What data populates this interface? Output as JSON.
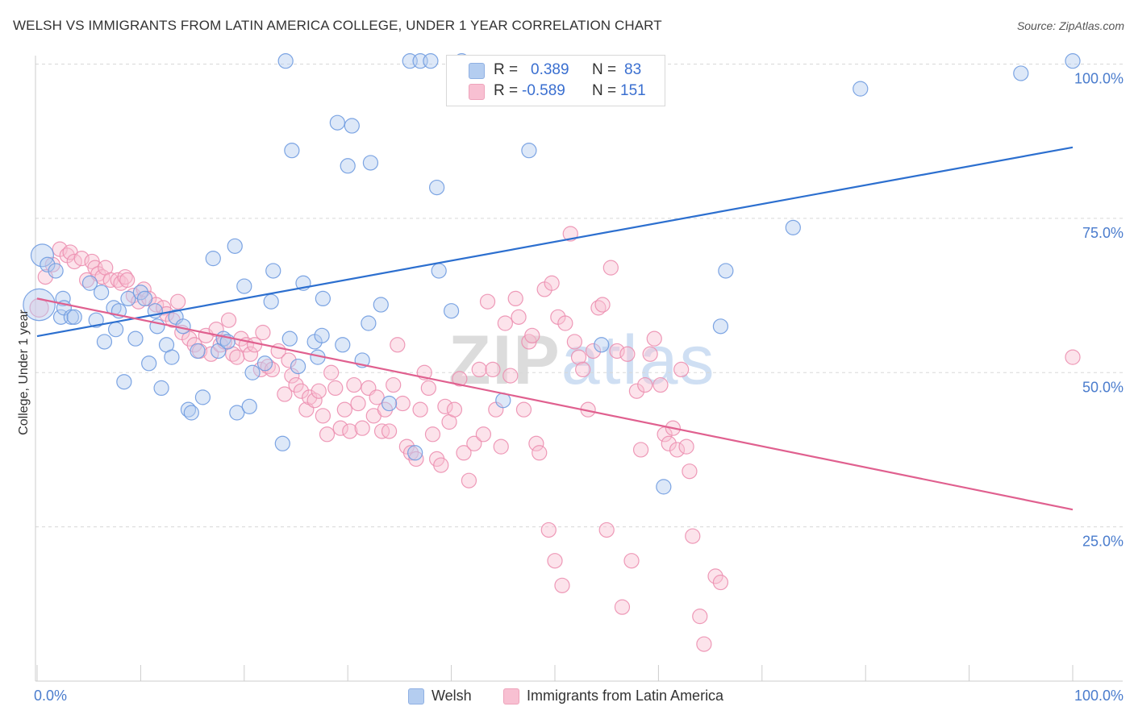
{
  "title": "WELSH VS IMMIGRANTS FROM LATIN AMERICA COLLEGE, UNDER 1 YEAR CORRELATION CHART",
  "source": "Source: ZipAtlas.com",
  "watermark": {
    "zip": "ZIP",
    "atlas": "atlas"
  },
  "colors": {
    "welsh_fill": "#b4cdf0",
    "welsh_stroke": "#6f9be0",
    "welsh_line": "#2c6fcf",
    "latam_fill": "#f8c0d2",
    "latam_stroke": "#ec8fb0",
    "latam_line": "#e0608f",
    "axis_label": "#4a7ccd",
    "grid": "#d8d8d8"
  },
  "stats_legend": {
    "welsh": {
      "r_label": "R =",
      "r_value": "0.389",
      "n_label": "N =",
      "n_value": "83"
    },
    "latam": {
      "r_label": "R =",
      "r_value": "-0.589",
      "n_label": "N =",
      "n_value": "151"
    }
  },
  "bottom_legend": {
    "welsh": "Welsh",
    "latam": "Immigrants from Latin America"
  },
  "chart_data": {
    "type": "scatter",
    "title": "WELSH VS IMMIGRANTS FROM LATIN AMERICA COLLEGE, UNDER 1 YEAR CORRELATION CHART",
    "xlabel": "",
    "ylabel": "College, Under 1 year",
    "xlim": [
      0,
      100
    ],
    "ylim": [
      0,
      104
    ],
    "x_tick_labels": [
      "0.0%",
      "100.0%"
    ],
    "y_ticks": [
      25,
      50,
      75,
      100
    ],
    "y_tick_labels": [
      "25.0%",
      "50.0%",
      "75.0%",
      "100.0%"
    ],
    "series": [
      {
        "name": "Welsh",
        "r": 0.389,
        "n": 83,
        "trend": {
          "x": [
            0,
            100
          ],
          "y": [
            55.9,
            86.5
          ]
        },
        "points": [
          [
            0.2,
            61,
            24
          ],
          [
            0.5,
            69,
            17
          ],
          [
            1.0,
            67.5,
            11
          ],
          [
            1.8,
            66.5,
            11
          ],
          [
            2.3,
            59,
            11
          ],
          [
            2.5,
            62,
            11
          ],
          [
            2.6,
            60.5,
            11
          ],
          [
            3.3,
            59,
            11
          ],
          [
            3.6,
            59,
            11
          ],
          [
            5.1,
            64.5,
            11
          ],
          [
            5.7,
            58.5,
            11
          ],
          [
            6.2,
            63,
            11
          ],
          [
            6.5,
            55,
            11
          ],
          [
            7.4,
            60.5,
            11
          ],
          [
            7.6,
            57,
            11
          ],
          [
            7.9,
            60,
            11
          ],
          [
            8.4,
            48.5,
            11
          ],
          [
            8.8,
            62,
            11
          ],
          [
            9.5,
            55.5,
            11
          ],
          [
            10.0,
            63,
            11
          ],
          [
            10.4,
            62,
            11
          ],
          [
            10.8,
            51.5,
            11
          ],
          [
            11.4,
            60,
            11
          ],
          [
            11.6,
            57.5,
            11
          ],
          [
            12.0,
            47.5,
            11
          ],
          [
            12.5,
            54.5,
            11
          ],
          [
            13.0,
            52.5,
            11
          ],
          [
            13.4,
            59,
            11
          ],
          [
            14.1,
            57.5,
            11
          ],
          [
            14.6,
            44,
            11
          ],
          [
            14.9,
            43.5,
            11
          ],
          [
            15.5,
            53.5,
            11
          ],
          [
            16.0,
            46,
            11
          ],
          [
            17.0,
            68.5,
            11
          ],
          [
            17.5,
            53.5,
            11
          ],
          [
            18.0,
            55.5,
            11
          ],
          [
            18.4,
            55,
            11
          ],
          [
            19.1,
            70.5,
            11
          ],
          [
            19.3,
            43.5,
            11
          ],
          [
            20.0,
            64,
            11
          ],
          [
            20.5,
            44.5,
            11
          ],
          [
            20.8,
            50,
            11
          ],
          [
            22.0,
            51.5,
            11
          ],
          [
            22.6,
            61.5,
            11
          ],
          [
            22.8,
            66.5,
            11
          ],
          [
            23.7,
            38.5,
            11
          ],
          [
            24.0,
            100.5,
            11
          ],
          [
            24.4,
            55.5,
            11
          ],
          [
            24.6,
            86,
            11
          ],
          [
            25.2,
            51,
            11
          ],
          [
            25.7,
            64.5,
            11
          ],
          [
            26.8,
            55,
            11
          ],
          [
            27.1,
            52.5,
            11
          ],
          [
            27.5,
            56,
            11
          ],
          [
            27.6,
            62,
            11
          ],
          [
            29.0,
            90.5,
            11
          ],
          [
            29.5,
            54.5,
            11
          ],
          [
            30.0,
            83.5,
            11
          ],
          [
            30.4,
            90,
            11
          ],
          [
            31.4,
            52,
            11
          ],
          [
            32.0,
            58,
            11
          ],
          [
            32.2,
            84,
            11
          ],
          [
            33.2,
            61,
            11
          ],
          [
            34.0,
            45,
            11
          ],
          [
            36.0,
            100.5,
            11
          ],
          [
            36.5,
            37,
            11
          ],
          [
            37.0,
            100.5,
            11
          ],
          [
            38.0,
            100.5,
            11
          ],
          [
            38.6,
            80,
            11
          ],
          [
            38.8,
            66.5,
            11
          ],
          [
            40.0,
            60,
            11
          ],
          [
            41.0,
            100.5,
            11
          ],
          [
            45.0,
            45.5,
            11
          ],
          [
            47.5,
            86,
            11
          ],
          [
            54.5,
            54.5,
            11
          ],
          [
            60.5,
            31.5,
            11
          ],
          [
            66.0,
            57.5,
            11
          ],
          [
            66.5,
            66.5,
            11
          ],
          [
            73.0,
            73.5,
            11
          ],
          [
            79.5,
            96,
            11
          ],
          [
            95.0,
            98.5,
            11
          ],
          [
            100.0,
            100.5,
            11
          ]
        ]
      },
      {
        "name": "Immigrants from Latin America",
        "r": -0.589,
        "n": 151,
        "trend": {
          "x": [
            0,
            100
          ],
          "y": [
            62.0,
            27.8
          ]
        },
        "points": [
          [
            0.2,
            60.5,
            14
          ],
          [
            0.8,
            65.5,
            11
          ],
          [
            1.5,
            67.5,
            11
          ],
          [
            2.2,
            70,
            11
          ],
          [
            2.9,
            69,
            11
          ],
          [
            3.2,
            69.5,
            11
          ],
          [
            3.6,
            68,
            11
          ],
          [
            4.3,
            68.5,
            11
          ],
          [
            4.8,
            65,
            11
          ],
          [
            5.3,
            68,
            11
          ],
          [
            5.6,
            67,
            11
          ],
          [
            5.9,
            66,
            11
          ],
          [
            6.3,
            65.5,
            11
          ],
          [
            6.6,
            67,
            11
          ],
          [
            7.1,
            65,
            11
          ],
          [
            7.8,
            65,
            11
          ],
          [
            8.1,
            64.5,
            11
          ],
          [
            8.5,
            65.5,
            11
          ],
          [
            8.7,
            65,
            11
          ],
          [
            9.3,
            62.5,
            11
          ],
          [
            9.8,
            61.5,
            11
          ],
          [
            10.3,
            63.5,
            11
          ],
          [
            10.8,
            62,
            11
          ],
          [
            11.5,
            61,
            11
          ],
          [
            12.2,
            60.5,
            11
          ],
          [
            12.5,
            59.5,
            11
          ],
          [
            13.1,
            58.5,
            11
          ],
          [
            13.6,
            61.5,
            11
          ],
          [
            14.0,
            56.5,
            11
          ],
          [
            14.7,
            55.5,
            11
          ],
          [
            15.2,
            54.5,
            11
          ],
          [
            15.7,
            53.5,
            11
          ],
          [
            16.3,
            56,
            11
          ],
          [
            16.8,
            53,
            11
          ],
          [
            17.3,
            57,
            11
          ],
          [
            17.7,
            54.5,
            11
          ],
          [
            18.1,
            55,
            11
          ],
          [
            18.5,
            58.5,
            11
          ],
          [
            18.9,
            53,
            11
          ],
          [
            19.3,
            52.5,
            11
          ],
          [
            19.7,
            55.5,
            11
          ],
          [
            20.2,
            54.5,
            11
          ],
          [
            20.6,
            53,
            11
          ],
          [
            21.0,
            54.5,
            11
          ],
          [
            21.6,
            50.5,
            11
          ],
          [
            21.8,
            56.5,
            11
          ],
          [
            22.3,
            51,
            11
          ],
          [
            22.7,
            50.5,
            11
          ],
          [
            23.3,
            53.5,
            11
          ],
          [
            23.9,
            46.5,
            11
          ],
          [
            24.3,
            52,
            11
          ],
          [
            24.6,
            49.5,
            11
          ],
          [
            25.0,
            48,
            11
          ],
          [
            25.5,
            47,
            11
          ],
          [
            26.0,
            44,
            11
          ],
          [
            26.3,
            46,
            11
          ],
          [
            26.8,
            45.5,
            11
          ],
          [
            27.2,
            47,
            11
          ],
          [
            27.6,
            43,
            11
          ],
          [
            28.0,
            40,
            11
          ],
          [
            28.4,
            50,
            11
          ],
          [
            28.8,
            47.5,
            11
          ],
          [
            29.3,
            41,
            11
          ],
          [
            29.7,
            44,
            11
          ],
          [
            30.2,
            40.5,
            11
          ],
          [
            30.6,
            48,
            11
          ],
          [
            31.0,
            45,
            11
          ],
          [
            31.4,
            41,
            11
          ],
          [
            32.0,
            47.5,
            11
          ],
          [
            32.5,
            43,
            11
          ],
          [
            32.8,
            46,
            11
          ],
          [
            33.3,
            40.5,
            11
          ],
          [
            33.6,
            44,
            11
          ],
          [
            34.0,
            40.5,
            11
          ],
          [
            34.4,
            48,
            11
          ],
          [
            34.8,
            54.5,
            11
          ],
          [
            35.3,
            45,
            11
          ],
          [
            35.7,
            38,
            11
          ],
          [
            36.1,
            37,
            11
          ],
          [
            36.6,
            36,
            11
          ],
          [
            37.0,
            44,
            11
          ],
          [
            37.4,
            50,
            11
          ],
          [
            37.8,
            47.5,
            11
          ],
          [
            38.2,
            40,
            11
          ],
          [
            38.6,
            36,
            11
          ],
          [
            39.0,
            35,
            11
          ],
          [
            39.4,
            44.5,
            11
          ],
          [
            39.8,
            42,
            11
          ],
          [
            40.3,
            44,
            11
          ],
          [
            40.8,
            49,
            11
          ],
          [
            41.2,
            37,
            11
          ],
          [
            41.7,
            32.5,
            11
          ],
          [
            42.2,
            38.5,
            11
          ],
          [
            42.7,
            50.5,
            11
          ],
          [
            43.1,
            40,
            11
          ],
          [
            43.5,
            61.5,
            11
          ],
          [
            44.0,
            50.5,
            11
          ],
          [
            44.3,
            44,
            11
          ],
          [
            44.8,
            38,
            11
          ],
          [
            45.2,
            58,
            11
          ],
          [
            45.7,
            49.5,
            11
          ],
          [
            46.2,
            62,
            11
          ],
          [
            46.5,
            59,
            11
          ],
          [
            47.0,
            44,
            11
          ],
          [
            47.5,
            55,
            11
          ],
          [
            47.8,
            56,
            11
          ],
          [
            48.2,
            38.5,
            11
          ],
          [
            48.5,
            37,
            11
          ],
          [
            49.0,
            63.5,
            11
          ],
          [
            49.4,
            24.5,
            11
          ],
          [
            49.7,
            64.5,
            11
          ],
          [
            50.0,
            19.5,
            11
          ],
          [
            50.3,
            59,
            11
          ],
          [
            50.7,
            15.5,
            11
          ],
          [
            51.0,
            58,
            11
          ],
          [
            51.5,
            72.5,
            11
          ],
          [
            51.9,
            55,
            11
          ],
          [
            52.3,
            52.5,
            11
          ],
          [
            52.7,
            50.5,
            11
          ],
          [
            53.2,
            44,
            11
          ],
          [
            53.7,
            53.5,
            11
          ],
          [
            54.2,
            60.5,
            11
          ],
          [
            54.6,
            61,
            11
          ],
          [
            55.0,
            24.5,
            11
          ],
          [
            55.4,
            67,
            11
          ],
          [
            56.0,
            53.5,
            11
          ],
          [
            56.5,
            12,
            11
          ],
          [
            57.0,
            53,
            11
          ],
          [
            57.4,
            19.5,
            11
          ],
          [
            57.9,
            47,
            11
          ],
          [
            58.3,
            37.5,
            11
          ],
          [
            58.7,
            48,
            11
          ],
          [
            59.2,
            53,
            11
          ],
          [
            59.6,
            55.5,
            11
          ],
          [
            60.2,
            48,
            11
          ],
          [
            60.6,
            40,
            11
          ],
          [
            61.0,
            38.5,
            11
          ],
          [
            61.4,
            41,
            11
          ],
          [
            61.8,
            37.5,
            11
          ],
          [
            62.2,
            50.5,
            11
          ],
          [
            62.7,
            38,
            11
          ],
          [
            63.0,
            34,
            11
          ],
          [
            63.3,
            23.5,
            11
          ],
          [
            64.0,
            10.5,
            11
          ],
          [
            64.4,
            6,
            11
          ],
          [
            65.5,
            17,
            11
          ],
          [
            66.0,
            16,
            11
          ],
          [
            100.0,
            52.5,
            11
          ]
        ]
      }
    ]
  }
}
